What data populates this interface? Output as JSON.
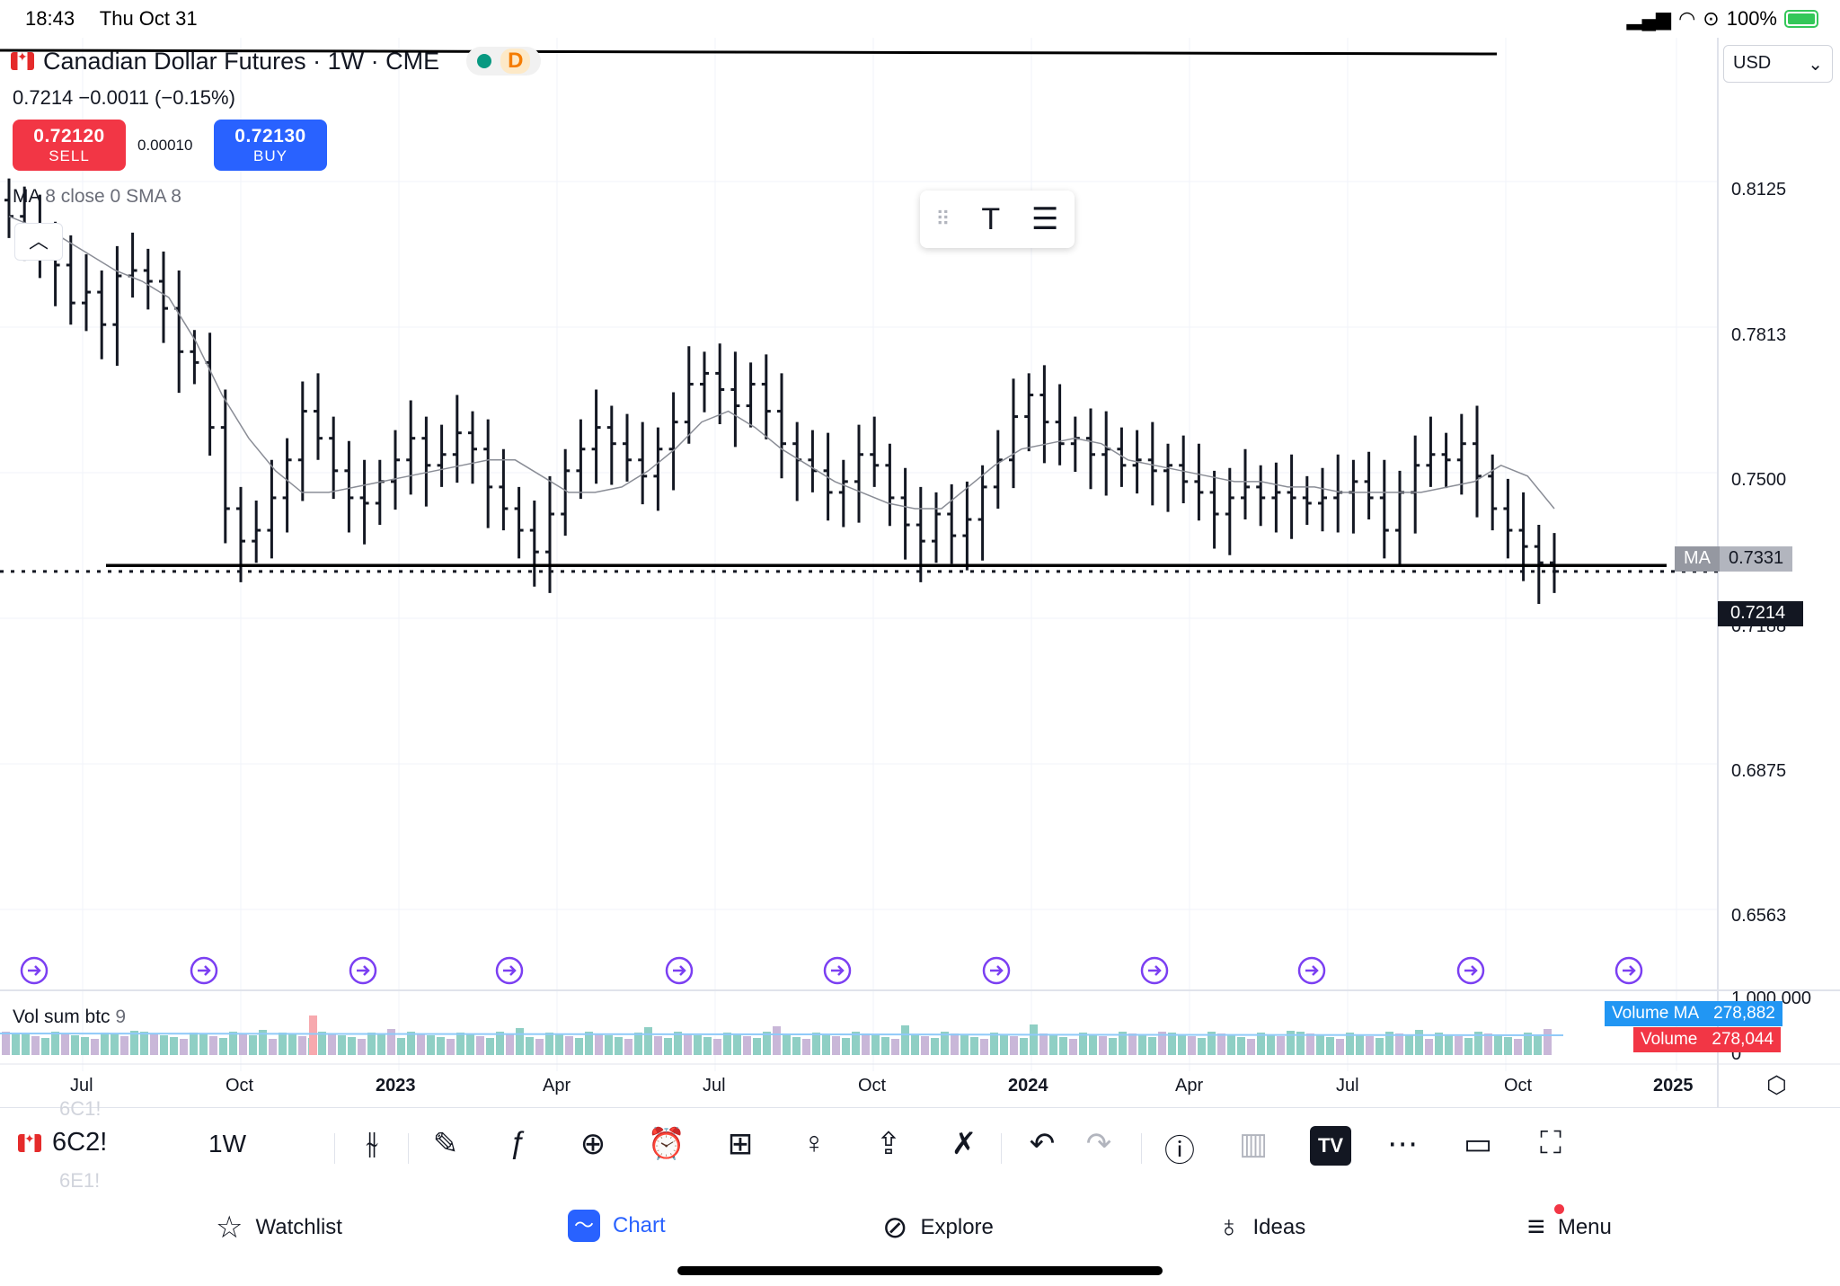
{
  "status_bar": {
    "time": "18:43",
    "date": "Thu Oct 31",
    "battery": "100%"
  },
  "header": {
    "title": "Canadian Dollar Futures · 1W · CME",
    "delay_badge": "D",
    "last": "0.7214",
    "change": "−0.0011 (−0.15%)"
  },
  "trade": {
    "sell_price": "0.72120",
    "sell_label": "SELL",
    "spread": "0.00010",
    "buy_price": "0.72130",
    "buy_label": "BUY"
  },
  "indicator": {
    "name": "MA",
    "params": "8 close 0 SMA 8"
  },
  "currency": "USD",
  "price_axis": {
    "labels": [
      "0.8125",
      "0.7813",
      "0.7500",
      "0.7188",
      "0.6875",
      "0.6563"
    ],
    "ma_tag": "MA",
    "ma_value": "0.7331",
    "last_price": "0.7214"
  },
  "volume": {
    "label": "Vol sum btc",
    "param": "9",
    "ma_label": "Volume MA",
    "ma_value": "278,882",
    "vol_label": "Volume",
    "vol_value": "278,044",
    "scale_top": "1,000,000",
    "scale_zero": "0"
  },
  "time_axis": [
    "Jul",
    "Oct",
    "2023",
    "Apr",
    "Jul",
    "Oct",
    "2024",
    "Apr",
    "Jul",
    "Oct",
    "2025"
  ],
  "chart_data": {
    "type": "ohlc-bar",
    "title": "Canadian Dollar Futures · 1W · CME",
    "ylim": [
      0.644,
      0.82
    ],
    "x_ticks": [
      "Jul",
      "Oct",
      "2023",
      "Apr",
      "Jul",
      "Oct",
      "2024",
      "Apr",
      "Jul",
      "Oct",
      "2025"
    ],
    "closes": [
      0.787,
      0.784,
      0.782,
      0.778,
      0.771,
      0.773,
      0.767,
      0.776,
      0.777,
      0.775,
      0.77,
      0.762,
      0.76,
      0.748,
      0.733,
      0.727,
      0.729,
      0.735,
      0.742,
      0.751,
      0.746,
      0.74,
      0.735,
      0.734,
      0.738,
      0.742,
      0.746,
      0.741,
      0.743,
      0.747,
      0.744,
      0.737,
      0.733,
      0.729,
      0.725,
      0.732,
      0.74,
      0.744,
      0.748,
      0.745,
      0.742,
      0.739,
      0.744,
      0.749,
      0.756,
      0.758,
      0.755,
      0.752,
      0.756,
      0.751,
      0.745,
      0.742,
      0.74,
      0.736,
      0.738,
      0.743,
      0.741,
      0.735,
      0.73,
      0.727,
      0.732,
      0.728,
      0.731,
      0.737,
      0.742,
      0.75,
      0.754,
      0.749,
      0.745,
      0.746,
      0.743,
      0.744,
      0.741,
      0.742,
      0.74,
      0.741,
      0.738,
      0.736,
      0.732,
      0.735,
      0.737,
      0.735,
      0.736,
      0.735,
      0.734,
      0.735,
      0.736,
      0.738,
      0.735,
      0.729,
      0.736,
      0.741,
      0.743,
      0.742,
      0.745,
      0.739,
      0.733,
      0.729,
      0.726,
      0.723,
      0.7214
    ],
    "ma": [
      0.787,
      0.785,
      0.783,
      0.78,
      0.777,
      0.775,
      0.772,
      0.764,
      0.754,
      0.746,
      0.74,
      0.736,
      0.736,
      0.737,
      0.738,
      0.739,
      0.74,
      0.741,
      0.742,
      0.742,
      0.739,
      0.736,
      0.736,
      0.737,
      0.74,
      0.744,
      0.749,
      0.751,
      0.748,
      0.744,
      0.741,
      0.738,
      0.736,
      0.734,
      0.733,
      0.733,
      0.737,
      0.741,
      0.744,
      0.745,
      0.746,
      0.745,
      0.742,
      0.741,
      0.74,
      0.739,
      0.738,
      0.738,
      0.737,
      0.737,
      0.736,
      0.736,
      0.736,
      0.736,
      0.737,
      0.738,
      0.741,
      0.739,
      0.733
    ]
  },
  "toolbar": {
    "symbol": "6C2!",
    "symbol_prev": "6C1!",
    "symbol_next": "6E1!",
    "timeframe": "1W",
    "tv_logo": "TV"
  },
  "tabs": [
    {
      "label": "Watchlist"
    },
    {
      "label": "Chart"
    },
    {
      "label": "Explore"
    },
    {
      "label": "Ideas"
    },
    {
      "label": "Menu"
    }
  ]
}
